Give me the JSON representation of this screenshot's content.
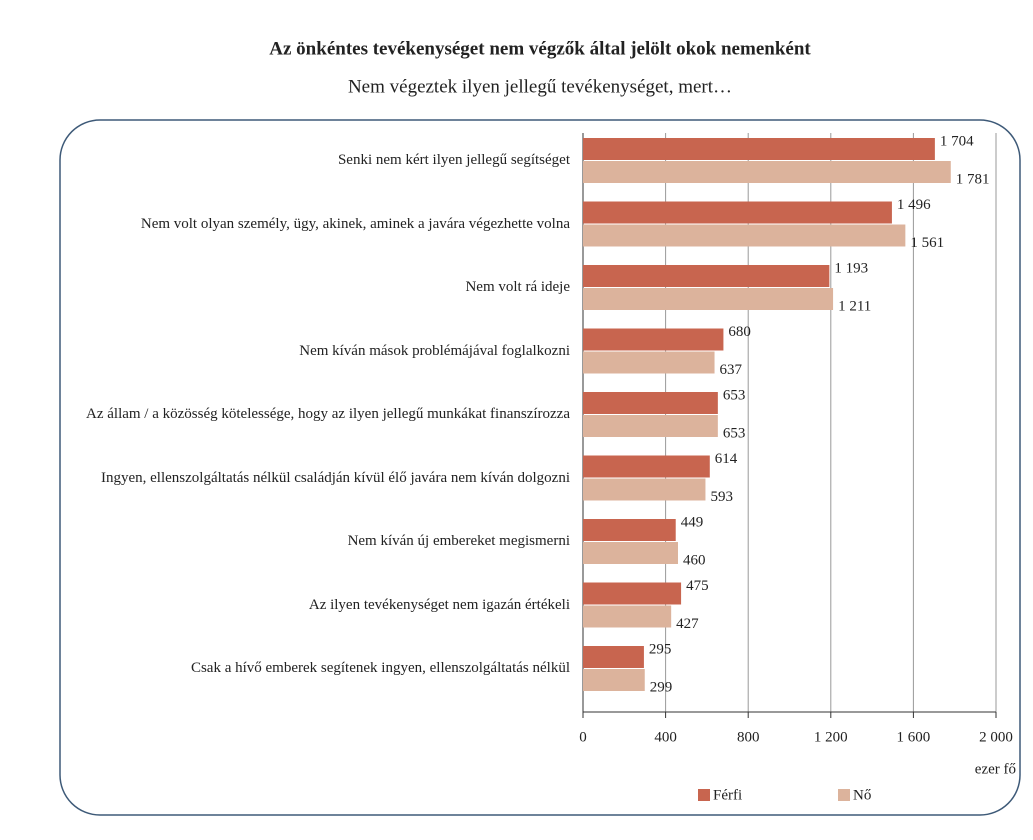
{
  "chart_data": {
    "type": "bar",
    "orientation": "horizontal",
    "title": "Az önkéntes tevékenységet nem végzők által jelölt okok nemenként",
    "subtitle": "Nem végeztek ilyen jellegű tevékenységet, mert…",
    "categories": [
      "Senki nem kért ilyen jellegű segítséget",
      "Nem volt olyan személy, ügy, akinek, aminek a javára végezhette volna",
      "Nem volt rá ideje",
      "Nem kíván mások problémájával foglalkozni",
      "Az állam / a közösség kötelessége, hogy az ilyen jellegű munkákat finanszírozza",
      "Ingyen, ellenszolgáltatás nélkül családján kívül élő javára nem kíván dolgozni",
      "Nem kíván új embereket megismerni",
      "Az ilyen tevékenységet nem igazán értékeli",
      "Csak a hívő emberek segítenek ingyen, ellenszolgáltatás nélkül"
    ],
    "series": [
      {
        "name": "Férfi",
        "color": "#c8654f",
        "values": [
          1704,
          1496,
          1193,
          680,
          653,
          614,
          449,
          475,
          295
        ],
        "value_labels": [
          "1 704",
          "1 496",
          "1 193",
          "680",
          "653",
          "614",
          "449",
          "475",
          "295"
        ]
      },
      {
        "name": "Nő",
        "color": "#dcb39c",
        "values": [
          1781,
          1561,
          1211,
          637,
          653,
          593,
          460,
          427,
          299
        ],
        "value_labels": [
          "1 781",
          "1 561",
          "1 211",
          "637",
          "653",
          "593",
          "460",
          "427",
          "299"
        ]
      }
    ],
    "xlabel": "ezer fő",
    "xlim": [
      0,
      2000
    ],
    "xticks": [
      0,
      400,
      800,
      {
        "value": 1200,
        "label": "1 200"
      },
      {
        "value": 1600,
        "label": "1 600"
      },
      {
        "value": 2000,
        "label": "2 000"
      }
    ],
    "grid": true,
    "legend": "bottom"
  }
}
